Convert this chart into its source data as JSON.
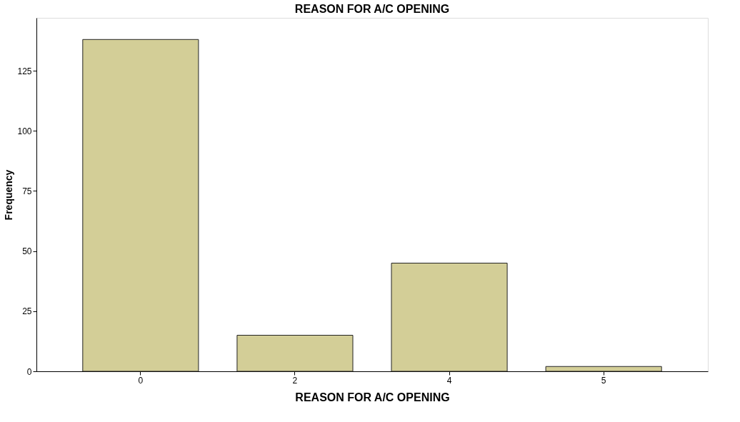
{
  "chart_data": {
    "type": "bar",
    "title": "REASON FOR A/C OPENING",
    "xlabel": "REASON FOR A/C OPENING",
    "ylabel": "Frequency",
    "categories": [
      "0",
      "2",
      "4",
      "5"
    ],
    "values": [
      138,
      15,
      45,
      2
    ],
    "color": "#d3ce97",
    "ylim": [
      0,
      147
    ],
    "yticks": [
      0,
      25,
      50,
      75,
      100,
      125
    ],
    "grid": false
  }
}
